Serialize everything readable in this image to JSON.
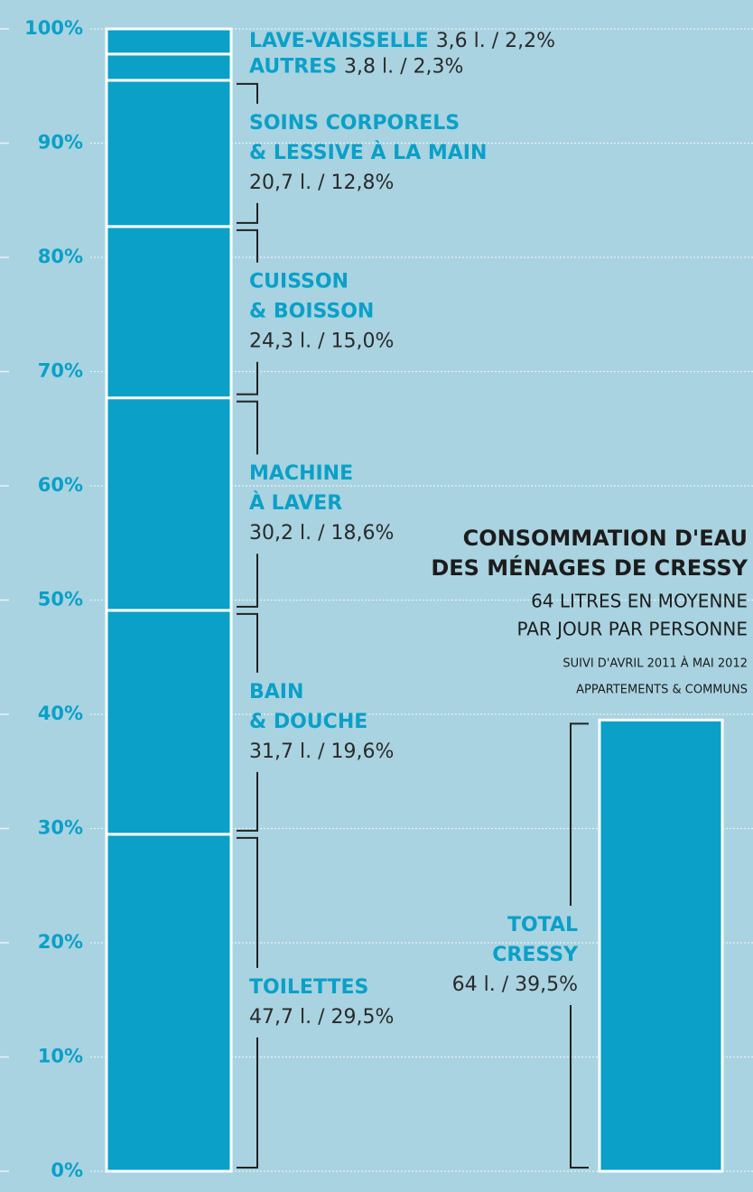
{
  "chart_data": {
    "type": "bar",
    "stacked": true,
    "title": [
      "CONSOMMATION D'EAU",
      "DES MÉNAGES DE CRESSY"
    ],
    "subtitle": [
      "64 LITRES EN MOYENNE",
      "PAR JOUR PAR PERSONNE"
    ],
    "notes": [
      "SUIVI D'AVRIL 2011 À MAI 2012",
      "APPARTEMENTS & COMMUNS"
    ],
    "ylim": [
      0,
      100
    ],
    "yticks": [
      {
        "value": 0,
        "label": "0%"
      },
      {
        "value": 10,
        "label": "10%"
      },
      {
        "value": 20,
        "label": "20%"
      },
      {
        "value": 30,
        "label": "30%"
      },
      {
        "value": 40,
        "label": "40%"
      },
      {
        "value": 50,
        "label": "50%"
      },
      {
        "value": 60,
        "label": "60%"
      },
      {
        "value": 70,
        "label": "70%"
      },
      {
        "value": 80,
        "label": "80%"
      },
      {
        "value": 90,
        "label": "90%"
      },
      {
        "value": 100,
        "label": "100%"
      }
    ],
    "grid": true,
    "color": "#0aa0c8",
    "categories": [
      [
        "TOILETTES"
      ],
      [
        "BAIN",
        "& DOUCHE"
      ],
      [
        "MACHINE",
        "À LAVER"
      ],
      [
        "CUISSON",
        "& BOISSON"
      ],
      [
        "SOINS CORPORELS",
        "& LESSIVE À LA MAIN"
      ],
      [
        "AUTRES"
      ],
      [
        "LAVE-VAISSELLE"
      ]
    ],
    "values": [
      29.5,
      19.6,
      18.6,
      15.0,
      12.8,
      2.3,
      2.2
    ],
    "value_labels": [
      "47,7 l. / 29,5%",
      "31,7 l. / 19,6%",
      "30,2 l. / 18,6%",
      "24,3 l. / 15,0%",
      "20,7 l. / 12,8%",
      "3,8 l. / 2,3%",
      "3,6 l. / 2,2%"
    ],
    "total": {
      "name": [
        "TOTAL",
        "CRESSY"
      ],
      "value": 39.5,
      "value_label": "64 l. / 39,5%"
    }
  }
}
